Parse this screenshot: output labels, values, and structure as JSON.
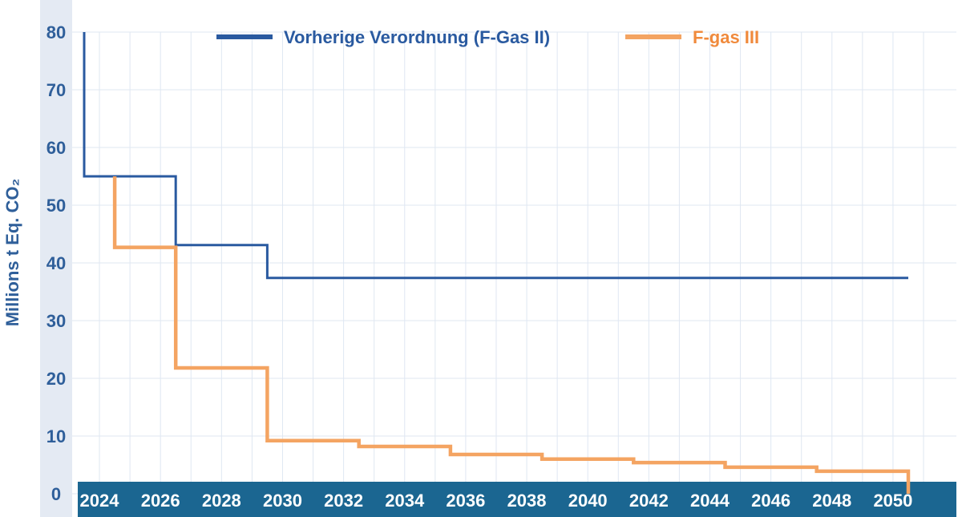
{
  "chart_data": {
    "type": "line",
    "step": true,
    "title": "",
    "xlabel": "",
    "ylabel": "Millions t Eq. CO₂",
    "xlim": [
      2023.5,
      2051
    ],
    "ylim": [
      0,
      80
    ],
    "x_ticks": [
      "2024",
      "2026",
      "2028",
      "2030",
      "2032",
      "2034",
      "2036",
      "2038",
      "2040",
      "2042",
      "2044",
      "2046",
      "2048",
      "2050"
    ],
    "y_ticks": [
      "0",
      "10",
      "20",
      "30",
      "40",
      "50",
      "60",
      "70",
      "80"
    ],
    "grid": true,
    "legend_position": "top",
    "series": [
      {
        "name": "Vorherige Verordnung (F-Gas II)",
        "color": "#2a5aa0",
        "points": [
          {
            "x": 2023.5,
            "y": 80
          },
          {
            "x": 2023.5,
            "y": 55
          },
          {
            "x": 2026.5,
            "y": 55
          },
          {
            "x": 2026.5,
            "y": 43.1
          },
          {
            "x": 2029.5,
            "y": 43.1
          },
          {
            "x": 2029.5,
            "y": 37.4
          },
          {
            "x": 2050.5,
            "y": 37.4
          }
        ]
      },
      {
        "name": "F-gas III",
        "color": "#f4a462",
        "points": [
          {
            "x": 2024.5,
            "y": 55
          },
          {
            "x": 2024.5,
            "y": 42.7
          },
          {
            "x": 2026.5,
            "y": 42.7
          },
          {
            "x": 2026.5,
            "y": 21.8
          },
          {
            "x": 2029.5,
            "y": 21.8
          },
          {
            "x": 2029.5,
            "y": 9.2
          },
          {
            "x": 2032.5,
            "y": 9.2
          },
          {
            "x": 2032.5,
            "y": 8.2
          },
          {
            "x": 2035.5,
            "y": 8.2
          },
          {
            "x": 2035.5,
            "y": 6.8
          },
          {
            "x": 2038.5,
            "y": 6.8
          },
          {
            "x": 2038.5,
            "y": 6.0
          },
          {
            "x": 2041.5,
            "y": 6.0
          },
          {
            "x": 2041.5,
            "y": 5.4
          },
          {
            "x": 2044.5,
            "y": 5.4
          },
          {
            "x": 2044.5,
            "y": 4.6
          },
          {
            "x": 2047.5,
            "y": 4.6
          },
          {
            "x": 2047.5,
            "y": 3.9
          },
          {
            "x": 2050.5,
            "y": 3.9
          },
          {
            "x": 2050.5,
            "y": 0
          }
        ]
      }
    ]
  },
  "colors": {
    "axis_band": "#1b6691",
    "y_axis_strip": "#e4eaf3",
    "grid": "#dfe7f2",
    "tick_label_y": "#2f5f9a",
    "tick_label_x": "#ffffff"
  }
}
